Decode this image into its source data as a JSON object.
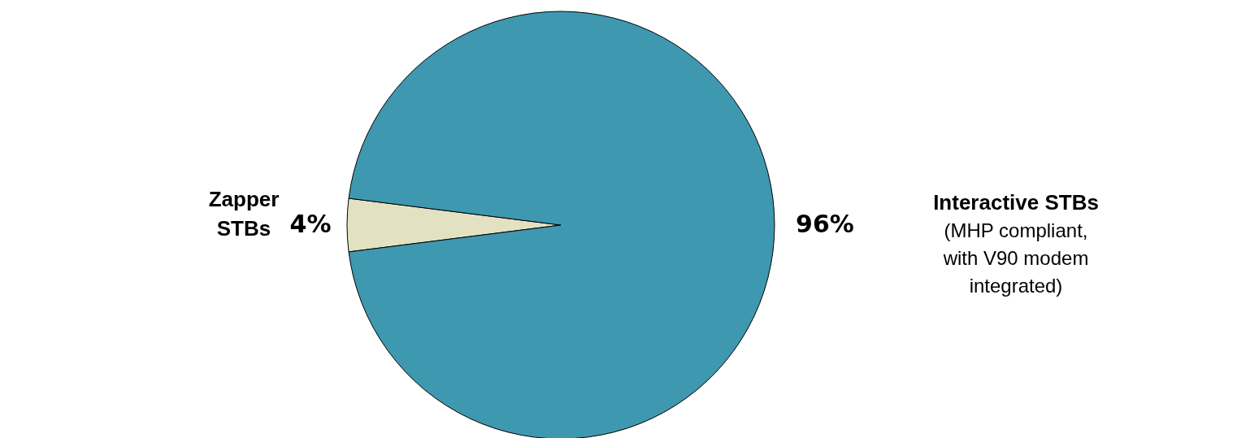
{
  "chart_data": {
    "type": "pie",
    "categories": [
      "Zapper STBs",
      "Interactive STBs"
    ],
    "values": [
      4,
      96
    ],
    "colors": [
      "#e2e2c2",
      "#3e98b0"
    ],
    "value_labels": [
      "4%",
      "96%"
    ],
    "annotations": [
      "(MHP compliant, with V90 modem integrated)"
    ]
  }
}
